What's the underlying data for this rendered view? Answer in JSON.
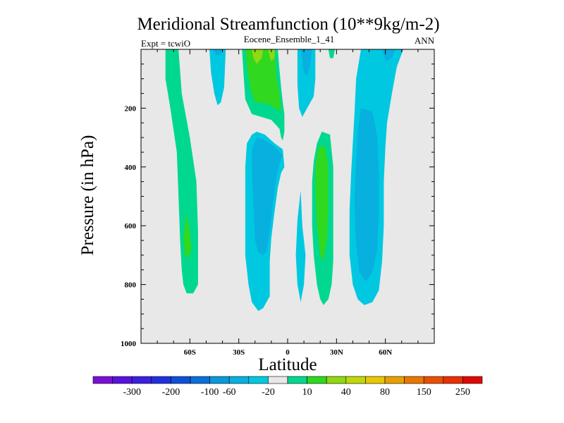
{
  "chart_data": {
    "type": "heatmap",
    "title": "Meridional Streamfunction (10**9kg/m-2)",
    "subtitle_left": "Expt = tcwiO",
    "subtitle_center": "Eocene_Ensemble_1_41",
    "subtitle_right": "ANN",
    "xlabel": "Latitude",
    "ylabel": "Pressure (in hPa)",
    "xlim": [
      -90,
      90
    ],
    "ylim": [
      1000,
      0
    ],
    "x_ticks": [
      {
        "value": -60,
        "label": "60S"
      },
      {
        "value": -30,
        "label": "30S"
      },
      {
        "value": 0,
        "label": "0"
      },
      {
        "value": 30,
        "label": "30N"
      },
      {
        "value": 60,
        "label": "60N"
      }
    ],
    "y_ticks": [
      {
        "value": 200,
        "label": "200"
      },
      {
        "value": 400,
        "label": "400"
      },
      {
        "value": 600,
        "label": "600"
      },
      {
        "value": 800,
        "label": "800"
      },
      {
        "value": 1000,
        "label": "1000"
      }
    ],
    "background_color": "#e8e8e8",
    "colorbar": {
      "colors": [
        "#7a10d8",
        "#5a10e0",
        "#3d20e0",
        "#2030e0",
        "#1050d8",
        "#0a70d8",
        "#0898dc",
        "#08b0e0",
        "#00c8e0",
        "#e8e8e8",
        "#00d890",
        "#30d820",
        "#90d810",
        "#c0d808",
        "#e8c800",
        "#e8a000",
        "#e87800",
        "#e85000",
        "#e83000",
        "#e00808"
      ],
      "labels": [
        {
          "label": "-300",
          "after_index": 1
        },
        {
          "label": "-200",
          "after_index": 3
        },
        {
          "label": "-100",
          "after_index": 5
        },
        {
          "label": "-60",
          "after_index": 6
        },
        {
          "label": "-20",
          "after_index": 8
        },
        {
          "label": "10",
          "after_index": 10
        },
        {
          "label": "40",
          "after_index": 12
        },
        {
          "label": "80",
          "after_index": 14
        },
        {
          "label": "150",
          "after_index": 16
        },
        {
          "label": "250",
          "after_index": 18
        }
      ]
    },
    "regions": [
      {
        "name": "sh-positive-cell-outer",
        "color": "#00d890",
        "points": [
          [
            -75,
            0
          ],
          [
            -67,
            0
          ],
          [
            -65,
            150
          ],
          [
            -60,
            300
          ],
          [
            -56,
            450
          ],
          [
            -55,
            620
          ],
          [
            -55,
            800
          ],
          [
            -58,
            830
          ],
          [
            -62,
            830
          ],
          [
            -64,
            800
          ],
          [
            -65,
            750
          ],
          [
            -66,
            650
          ],
          [
            -67,
            500
          ],
          [
            -68,
            350
          ],
          [
            -72,
            200
          ],
          [
            -75,
            100
          ]
        ]
      },
      {
        "name": "sh-positive-cell-core",
        "color": "#30d820",
        "points": [
          [
            -62,
            560
          ],
          [
            -60,
            620
          ],
          [
            -59,
            680
          ],
          [
            -61,
            710
          ],
          [
            -63,
            700
          ],
          [
            -64,
            640
          ]
        ]
      },
      {
        "name": "sh-upper-negative-lobe",
        "color": "#00c8e0",
        "points": [
          [
            -48,
            0
          ],
          [
            -38,
            0
          ],
          [
            -39,
            130
          ],
          [
            -41,
            180
          ],
          [
            -43,
            190
          ],
          [
            -45,
            150
          ],
          [
            -47,
            80
          ]
        ]
      },
      {
        "name": "sh-upper-negative-core",
        "color": "#08b0e0",
        "points": [
          [
            -46,
            0
          ],
          [
            -40,
            0
          ],
          [
            -41,
            20
          ],
          [
            -44,
            20
          ]
        ]
      },
      {
        "name": "eq-upper-positive-outer",
        "color": "#00d890",
        "points": [
          [
            -28,
            0
          ],
          [
            -6,
            0
          ],
          [
            -5,
            70
          ],
          [
            -4,
            130
          ],
          [
            -3,
            180
          ],
          [
            -2,
            220
          ],
          [
            -2,
            280
          ],
          [
            -3,
            310
          ],
          [
            -4,
            300
          ],
          [
            -5,
            270
          ],
          [
            -10,
            240
          ],
          [
            -22,
            220
          ],
          [
            -26,
            170
          ],
          [
            -27,
            90
          ]
        ]
      },
      {
        "name": "eq-upper-positive-mid",
        "color": "#30d820",
        "points": [
          [
            -26,
            0
          ],
          [
            -8,
            0
          ],
          [
            -7,
            90
          ],
          [
            -5,
            150
          ],
          [
            -4,
            210
          ],
          [
            -8,
            200
          ],
          [
            -12,
            185
          ],
          [
            -20,
            180
          ],
          [
            -23,
            130
          ],
          [
            -25,
            60
          ]
        ]
      },
      {
        "name": "eq-upper-positive-core-1",
        "color": "#90d810",
        "points": [
          [
            -22,
            0
          ],
          [
            -15,
            0
          ],
          [
            -16,
            30
          ],
          [
            -19,
            50
          ],
          [
            -21,
            30
          ]
        ]
      },
      {
        "name": "eq-upper-positive-core-2",
        "color": "#90d810",
        "points": [
          [
            -12,
            0
          ],
          [
            -8,
            0
          ],
          [
            -8,
            30
          ],
          [
            -10,
            40
          ],
          [
            -11,
            25
          ]
        ]
      },
      {
        "name": "nh-upper-negative-lobe",
        "color": "#00c8e0",
        "points": [
          [
            6,
            0
          ],
          [
            17,
            0
          ],
          [
            17,
            100
          ],
          [
            16,
            160
          ],
          [
            12,
            200
          ],
          [
            9,
            230
          ],
          [
            7,
            200
          ],
          [
            6,
            120
          ]
        ]
      },
      {
        "name": "nh-upper-negative-core",
        "color": "#08b0e0",
        "points": [
          [
            8,
            0
          ],
          [
            15,
            0
          ],
          [
            14,
            50
          ],
          [
            12,
            90
          ],
          [
            10,
            80
          ],
          [
            9,
            40
          ]
        ]
      },
      {
        "name": "nh-upper-positive-sliver",
        "color": "#00d890",
        "points": [
          [
            25,
            0
          ],
          [
            29,
            0
          ],
          [
            28,
            30
          ],
          [
            26,
            30
          ]
        ]
      },
      {
        "name": "sh-lower-negative-cell",
        "color": "#00c8e0",
        "points": [
          [
            -19,
            280
          ],
          [
            -14,
            290
          ],
          [
            -8,
            320
          ],
          [
            -3,
            340
          ],
          [
            -2,
            400
          ],
          [
            -4,
            420
          ],
          [
            -6,
            470
          ],
          [
            -8,
            550
          ],
          [
            -10,
            640
          ],
          [
            -11,
            720
          ],
          [
            -11,
            840
          ],
          [
            -15,
            880
          ],
          [
            -18,
            890
          ],
          [
            -22,
            860
          ],
          [
            -24,
            800
          ],
          [
            -26,
            700
          ],
          [
            -26,
            600
          ],
          [
            -26,
            400
          ],
          [
            -25,
            320
          ],
          [
            -22,
            290
          ]
        ]
      },
      {
        "name": "sh-lower-negative-core",
        "color": "#08b0e0",
        "points": [
          [
            -19,
            300
          ],
          [
            -15,
            305
          ],
          [
            -8,
            330
          ],
          [
            -3,
            360
          ],
          [
            -5,
            390
          ],
          [
            -7,
            440
          ],
          [
            -9,
            520
          ],
          [
            -11,
            620
          ],
          [
            -13,
            690
          ],
          [
            -15,
            700
          ],
          [
            -18,
            690
          ],
          [
            -20,
            650
          ],
          [
            -21,
            520
          ],
          [
            -22,
            420
          ],
          [
            -22,
            340
          ]
        ]
      },
      {
        "name": "eq-negative-sliver",
        "color": "#00c8e0",
        "points": [
          [
            8,
            480
          ],
          [
            9,
            600
          ],
          [
            11,
            700
          ],
          [
            10,
            800
          ],
          [
            8,
            860
          ],
          [
            6,
            800
          ],
          [
            5,
            700
          ],
          [
            6,
            580
          ]
        ]
      },
      {
        "name": "nh-lower-positive-cell",
        "color": "#00d890",
        "points": [
          [
            21,
            280
          ],
          [
            26,
            290
          ],
          [
            28,
            400
          ],
          [
            28,
            600
          ],
          [
            28,
            720
          ],
          [
            27,
            800
          ],
          [
            25,
            850
          ],
          [
            22,
            870
          ],
          [
            20,
            850
          ],
          [
            18,
            800
          ],
          [
            16,
            700
          ],
          [
            15,
            600
          ],
          [
            15,
            450
          ],
          [
            16,
            380
          ],
          [
            18,
            320
          ]
        ]
      },
      {
        "name": "nh-lower-positive-core",
        "color": "#30d820",
        "points": [
          [
            19,
            330
          ],
          [
            23,
            330
          ],
          [
            25,
            400
          ],
          [
            25,
            550
          ],
          [
            24,
            650
          ],
          [
            22,
            720
          ],
          [
            20,
            700
          ],
          [
            18,
            600
          ],
          [
            17,
            480
          ],
          [
            17,
            400
          ]
        ]
      },
      {
        "name": "nh-negative-cell-outer",
        "color": "#00c8e0",
        "points": [
          [
            45,
            0
          ],
          [
            71,
            0
          ],
          [
            67,
            60
          ],
          [
            64,
            150
          ],
          [
            61,
            250
          ],
          [
            60,
            330
          ],
          [
            59,
            450
          ],
          [
            59,
            600
          ],
          [
            58,
            720
          ],
          [
            56,
            820
          ],
          [
            52,
            860
          ],
          [
            47,
            870
          ],
          [
            43,
            850
          ],
          [
            40,
            800
          ],
          [
            38,
            700
          ],
          [
            38,
            550
          ],
          [
            39,
            420
          ],
          [
            40,
            320
          ],
          [
            41,
            220
          ],
          [
            42,
            100
          ]
        ]
      },
      {
        "name": "nh-negative-cell-core",
        "color": "#08b0e0",
        "points": [
          [
            45,
            200
          ],
          [
            52,
            210
          ],
          [
            55,
            300
          ],
          [
            56,
            420
          ],
          [
            56,
            560
          ],
          [
            55,
            680
          ],
          [
            52,
            760
          ],
          [
            48,
            790
          ],
          [
            44,
            760
          ],
          [
            42,
            660
          ],
          [
            41,
            520
          ],
          [
            42,
            380
          ],
          [
            43,
            280
          ]
        ]
      },
      {
        "name": "nh-negative-cell-top",
        "color": "#08b0e0",
        "points": [
          [
            58,
            0
          ],
          [
            66,
            0
          ],
          [
            64,
            30
          ],
          [
            60,
            40
          ]
        ]
      }
    ]
  }
}
